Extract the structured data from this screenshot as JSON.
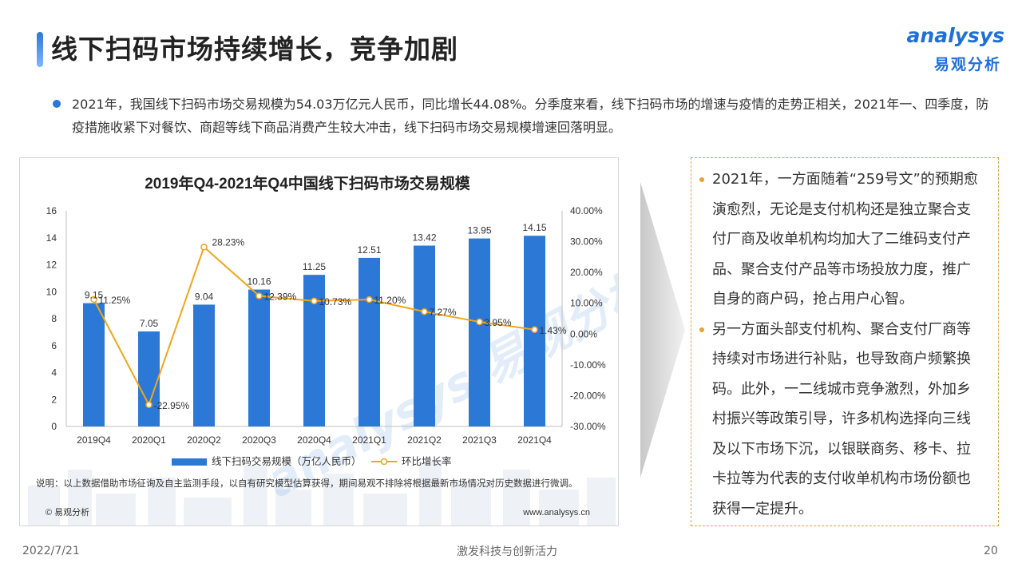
{
  "header": {
    "title": "线下扫码市场持续增长，竞争加剧",
    "logo_en": "analysys",
    "logo_cn": "易观分析"
  },
  "summary": "2021年，我国线下扫码市场交易规模为54.03万亿元人民币，同比增长44.08%。分季度来看，线下扫码市场的增速与疫情的走势正相关，2021年一、四季度，防疫措施收紧下对餐饮、商超等线下商品消费产生较大冲击，线下扫码市场交易规模增速回落明显。",
  "chart_data": {
    "type": "bar",
    "title": "2019年Q4-2021年Q4中国线下扫码市场交易规模",
    "categories": [
      "2019Q4",
      "2020Q1",
      "2020Q2",
      "2020Q3",
      "2020Q4",
      "2021Q1",
      "2021Q2",
      "2021Q3",
      "2021Q4"
    ],
    "series": [
      {
        "name": "线下扫码交易规模（万亿人民币）",
        "type": "bar",
        "axis": "left",
        "color": "#2b78d6",
        "values": [
          9.15,
          7.05,
          9.04,
          10.16,
          11.25,
          12.51,
          13.42,
          13.95,
          14.15
        ],
        "labels": [
          "9.15",
          "7.05",
          "9.04",
          "10.16",
          "11.25",
          "12.51",
          "13.42",
          "13.95",
          "14.15"
        ]
      },
      {
        "name": "环比增长率",
        "type": "line",
        "axis": "right",
        "color": "#f2a51a",
        "values": [
          11.25,
          -22.95,
          28.23,
          12.39,
          10.73,
          11.2,
          7.27,
          3.95,
          1.43
        ],
        "labels": [
          "11.25%",
          "-22.95%",
          "28.23%",
          "12.39%",
          "10.73%",
          "11.20%",
          "7.27%",
          "3.95%",
          "1.43%"
        ]
      }
    ],
    "ylim": [
      0,
      16
    ],
    "yticks": [
      "0",
      "2",
      "4",
      "6",
      "8",
      "10",
      "12",
      "14",
      "16"
    ],
    "y2lim": [
      -30,
      40
    ],
    "y2ticks": [
      "-30.00%",
      "-20.00%",
      "-10.00%",
      "0.00%",
      "10.00%",
      "20.00%",
      "30.00%",
      "40.00%"
    ],
    "note": "说明：以上数据借助市场征询及自主监测手段，以自有研究模型估算获得，期间易观不排除将根据最新市场情况对历史数据进行微调。",
    "copyright": "© 易观分析",
    "website": "www.analysys.cn",
    "watermark_text": "analysys 易观分析"
  },
  "right_panel": {
    "bullets": [
      "2021年，一方面随着“259号文”的预期愈演愈烈，无论是支付机构还是独立聚合支付厂商及收单机构均加大了二维码支付产品、聚合支付产品等市场投放力度，推广自身的商户码，抢占用户心智。",
      "另一方面头部支付机构、聚合支付厂商等持续对市场进行补贴，也导致商户频繁换码。此外，一二线城市竞争激烈，外加乡村振兴等政策引导，许多机构选择向三线及以下市场下沉，以银联商务、移卡、拉卡拉等为代表的支付收单机构市场份额也获得一定提升。"
    ]
  },
  "footer": {
    "date": "2022/7/21",
    "slogan": "激发科技与创新活力",
    "page": "20"
  }
}
